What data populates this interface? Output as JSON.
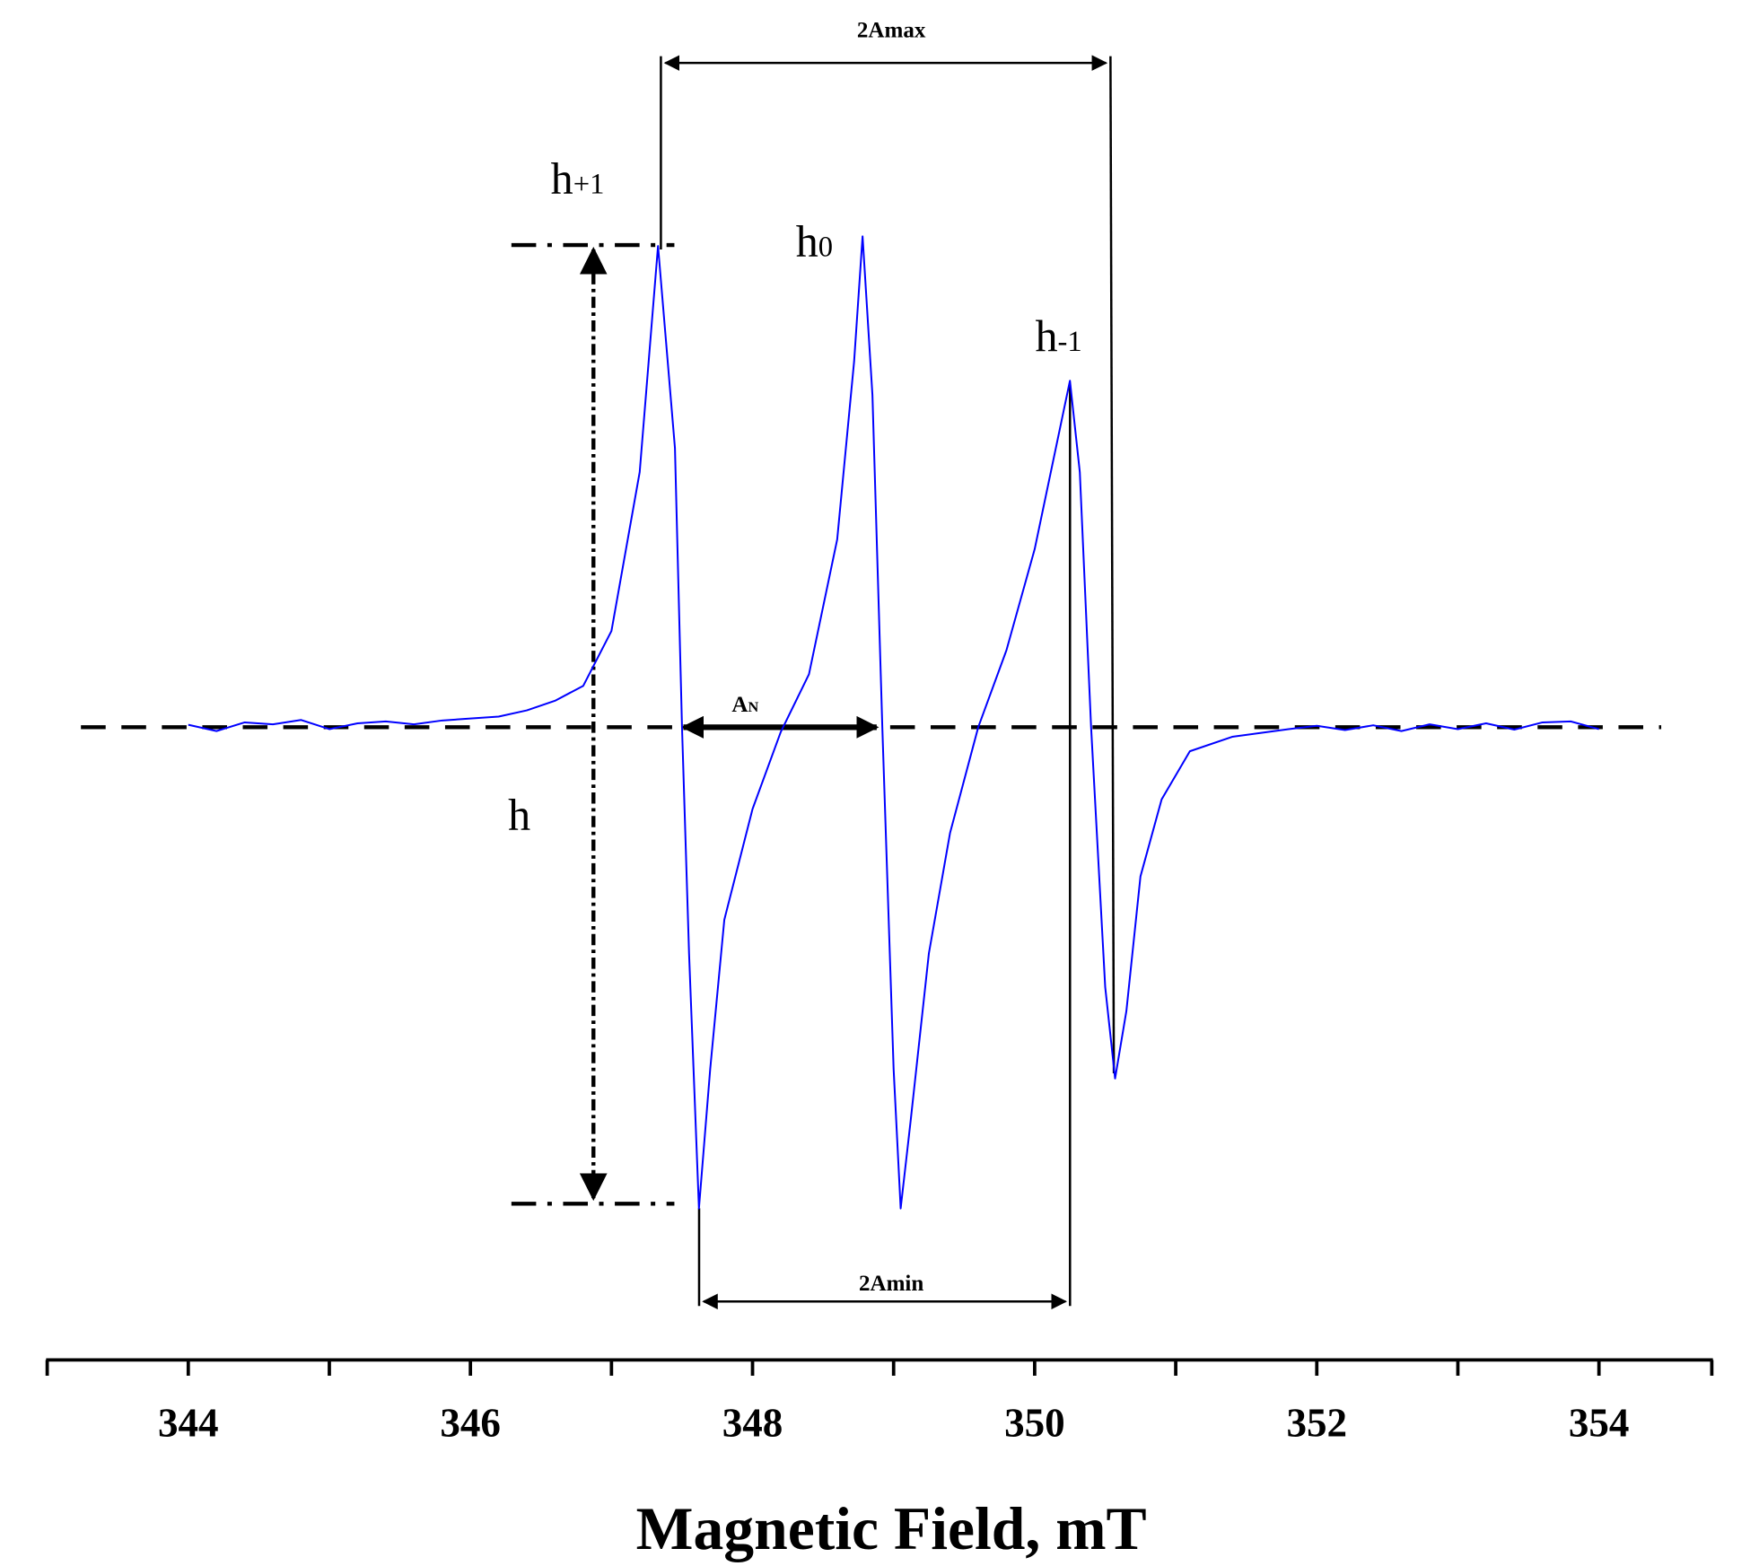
{
  "chart_data": {
    "type": "line",
    "x_label": "Magnetic Field, mT",
    "xlim": [
      343,
      354.8
    ],
    "xticks": [
      344,
      346,
      348,
      350,
      352,
      354
    ],
    "xminorticks": [
      343,
      345,
      347,
      349,
      351,
      353
    ],
    "ylim": [
      -1.1,
      1.1
    ],
    "color": "#0000ff",
    "x": [
      344.0,
      344.2,
      344.4,
      344.6,
      344.8,
      345.0,
      345.2,
      345.4,
      345.6,
      345.8,
      346.0,
      346.2,
      346.4,
      346.6,
      346.8,
      347.0,
      347.2,
      347.33,
      347.45,
      347.5,
      347.55,
      347.62,
      347.7,
      347.8,
      348.0,
      348.2,
      348.4,
      348.6,
      348.72,
      348.78,
      348.85,
      348.92,
      349.0,
      349.05,
      349.12,
      349.25,
      349.4,
      349.6,
      349.8,
      350.0,
      350.15,
      350.25,
      350.32,
      350.4,
      350.5,
      350.57,
      350.65,
      350.75,
      350.9,
      351.1,
      351.4,
      351.6,
      351.8,
      352.0,
      352.2,
      352.4,
      352.6,
      352.8,
      353.0,
      353.2,
      353.4,
      353.6,
      353.8,
      354.0
    ],
    "values": [
      0.005,
      -0.008,
      0.01,
      0.006,
      0.015,
      -0.004,
      0.008,
      0.012,
      0.006,
      0.014,
      0.018,
      0.022,
      0.035,
      0.055,
      0.086,
      0.2,
      0.53,
      1.0,
      0.58,
      0.0,
      -0.47,
      -1.0,
      -0.71,
      -0.4,
      -0.17,
      -0.01,
      0.11,
      0.39,
      0.76,
      1.02,
      0.69,
      0.0,
      -0.71,
      -1.0,
      -0.82,
      -0.47,
      -0.22,
      0.0,
      0.16,
      0.37,
      0.58,
      0.72,
      0.53,
      0.0,
      -0.54,
      -0.73,
      -0.59,
      -0.31,
      -0.15,
      -0.05,
      -0.02,
      -0.012,
      -0.004,
      0.003,
      -0.006,
      0.004,
      -0.008,
      0.006,
      -0.004,
      0.008,
      -0.005,
      0.01,
      0.012,
      -0.004
    ],
    "annotations": [
      {
        "text": "2Amax"
      },
      {
        "text": "2Amin"
      },
      {
        "text": "A",
        "sub": "N"
      },
      {
        "text": "h",
        "sub": "+1"
      },
      {
        "text": "h",
        "sub": "0"
      },
      {
        "text": "h",
        "sub": "-1"
      },
      {
        "text": "h"
      }
    ]
  }
}
